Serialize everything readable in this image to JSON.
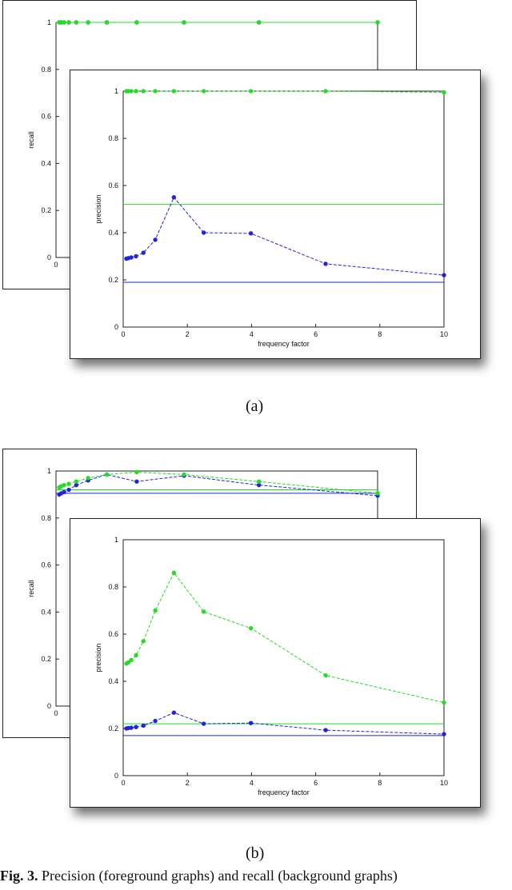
{
  "figures": [
    {
      "label": "(a)",
      "chart_data": [
        {
          "type": "line",
          "ylabel": "recall",
          "xlabel": "",
          "xlim": [
            0,
            10
          ],
          "ylim": [
            0,
            1
          ],
          "yticks": [
            "0",
            "0.2",
            "0.4",
            "0.6",
            "0.8",
            "1"
          ],
          "xticks": [
            "0"
          ],
          "series": [
            {
              "color": "#2222dd",
              "dashed": true,
              "x": [
                0.1,
                0.16,
                0.25,
                0.4,
                0.63,
                1.0,
                1.58,
                2.51,
                3.98,
                6.31,
                10.0
              ],
              "values": [
                1,
                1,
                1,
                1,
                1,
                1,
                1,
                1,
                1,
                1,
                1
              ]
            },
            {
              "color": "#22dd22",
              "dashed": false,
              "x": [
                0.1,
                0.16,
                0.25,
                0.4,
                0.63,
                1.0,
                1.58,
                2.51,
                3.98,
                6.31,
                10.0
              ],
              "values": [
                1,
                1,
                1,
                1,
                1,
                1,
                1,
                1,
                1,
                1,
                1
              ]
            }
          ],
          "hlines": [
            {
              "color": "#22dd22",
              "y": 1
            }
          ]
        },
        {
          "type": "line",
          "ylabel": "precision",
          "xlabel": "frequency factor",
          "xlim": [
            0,
            10
          ],
          "ylim": [
            0,
            1
          ],
          "yticks": [
            "0",
            "0.2",
            "0.4",
            "0.6",
            "0.8",
            "1"
          ],
          "xticks": [
            "0",
            "2",
            "4",
            "6",
            "8",
            "10"
          ],
          "series": [
            {
              "color": "#2222dd",
              "dashed": true,
              "x": [
                0.1,
                0.16,
                0.25,
                0.4,
                0.63,
                1.0,
                1.58,
                2.51,
                3.98,
                6.31,
                10.0
              ],
              "values": [
                0.29,
                0.292,
                0.295,
                0.3,
                0.315,
                0.37,
                0.55,
                0.4,
                0.397,
                0.268,
                0.22
              ]
            },
            {
              "color": "#22dd22",
              "dashed": true,
              "x": [
                0.1,
                0.16,
                0.25,
                0.4,
                0.63,
                1.0,
                1.58,
                2.51,
                3.98,
                6.31,
                10.0
              ],
              "values": [
                1,
                1,
                1,
                1,
                1,
                1,
                1,
                1,
                1,
                1,
                0.995
              ]
            }
          ],
          "hlines": [
            {
              "color": "#22dd22",
              "y": 0.52
            },
            {
              "color": "#2222dd",
              "y": 0.19
            }
          ]
        }
      ]
    },
    {
      "label": "(b)",
      "chart_data": [
        {
          "type": "line",
          "ylabel": "recall",
          "xlabel": "",
          "xlim": [
            0,
            10
          ],
          "ylim": [
            0,
            1
          ],
          "yticks": [
            "0",
            "0.2",
            "0.4",
            "0.6",
            "0.8",
            "1"
          ],
          "xticks": [
            "0"
          ],
          "series": [
            {
              "color": "#2222dd",
              "dashed": true,
              "x": [
                0.1,
                0.16,
                0.25,
                0.4,
                0.63,
                1.0,
                1.58,
                2.51,
                3.98,
                6.31,
                10.0
              ],
              "values": [
                0.9,
                0.905,
                0.91,
                0.92,
                0.94,
                0.96,
                0.985,
                0.955,
                0.98,
                0.94,
                0.895
              ]
            },
            {
              "color": "#22dd22",
              "dashed": true,
              "x": [
                0.1,
                0.16,
                0.25,
                0.4,
                0.63,
                1.0,
                1.58,
                2.51,
                3.98,
                6.31,
                10.0
              ],
              "values": [
                0.93,
                0.935,
                0.94,
                0.945,
                0.955,
                0.97,
                0.985,
                0.995,
                0.985,
                0.955,
                0.905
              ]
            }
          ],
          "hlines": [
            {
              "color": "#22dd22",
              "y": 0.92
            },
            {
              "color": "#2222dd",
              "y": 0.905
            }
          ]
        },
        {
          "type": "line",
          "ylabel": "precision",
          "xlabel": "frequency factor",
          "xlim": [
            0,
            10
          ],
          "ylim": [
            0,
            1
          ],
          "yticks": [
            "0",
            "0.2",
            "0.4",
            "0.6",
            "0.8",
            "1"
          ],
          "xticks": [
            "0",
            "2",
            "4",
            "6",
            "8",
            "10"
          ],
          "series": [
            {
              "color": "#22dd22",
              "dashed": true,
              "x": [
                0.1,
                0.16,
                0.25,
                0.4,
                0.63,
                1.0,
                1.58,
                2.51,
                3.98,
                6.31,
                10.0
              ],
              "values": [
                0.475,
                0.48,
                0.49,
                0.51,
                0.57,
                0.7,
                0.86,
                0.695,
                0.625,
                0.425,
                0.31
              ]
            },
            {
              "color": "#2222dd",
              "dashed": true,
              "x": [
                0.1,
                0.16,
                0.25,
                0.4,
                0.63,
                1.0,
                1.58,
                2.51,
                3.98,
                6.31,
                10.0
              ],
              "values": [
                0.2,
                0.202,
                0.203,
                0.206,
                0.212,
                0.232,
                0.267,
                0.22,
                0.223,
                0.193,
                0.176
              ]
            }
          ],
          "hlines": [
            {
              "color": "#22dd22",
              "y": 0.22
            },
            {
              "color": "#2222dd",
              "y": 0.17
            }
          ]
        }
      ]
    }
  ],
  "caption": {
    "lead": "Fig. 3.",
    "text": " Precision (foreground graphs) and recall (background graphs)"
  }
}
